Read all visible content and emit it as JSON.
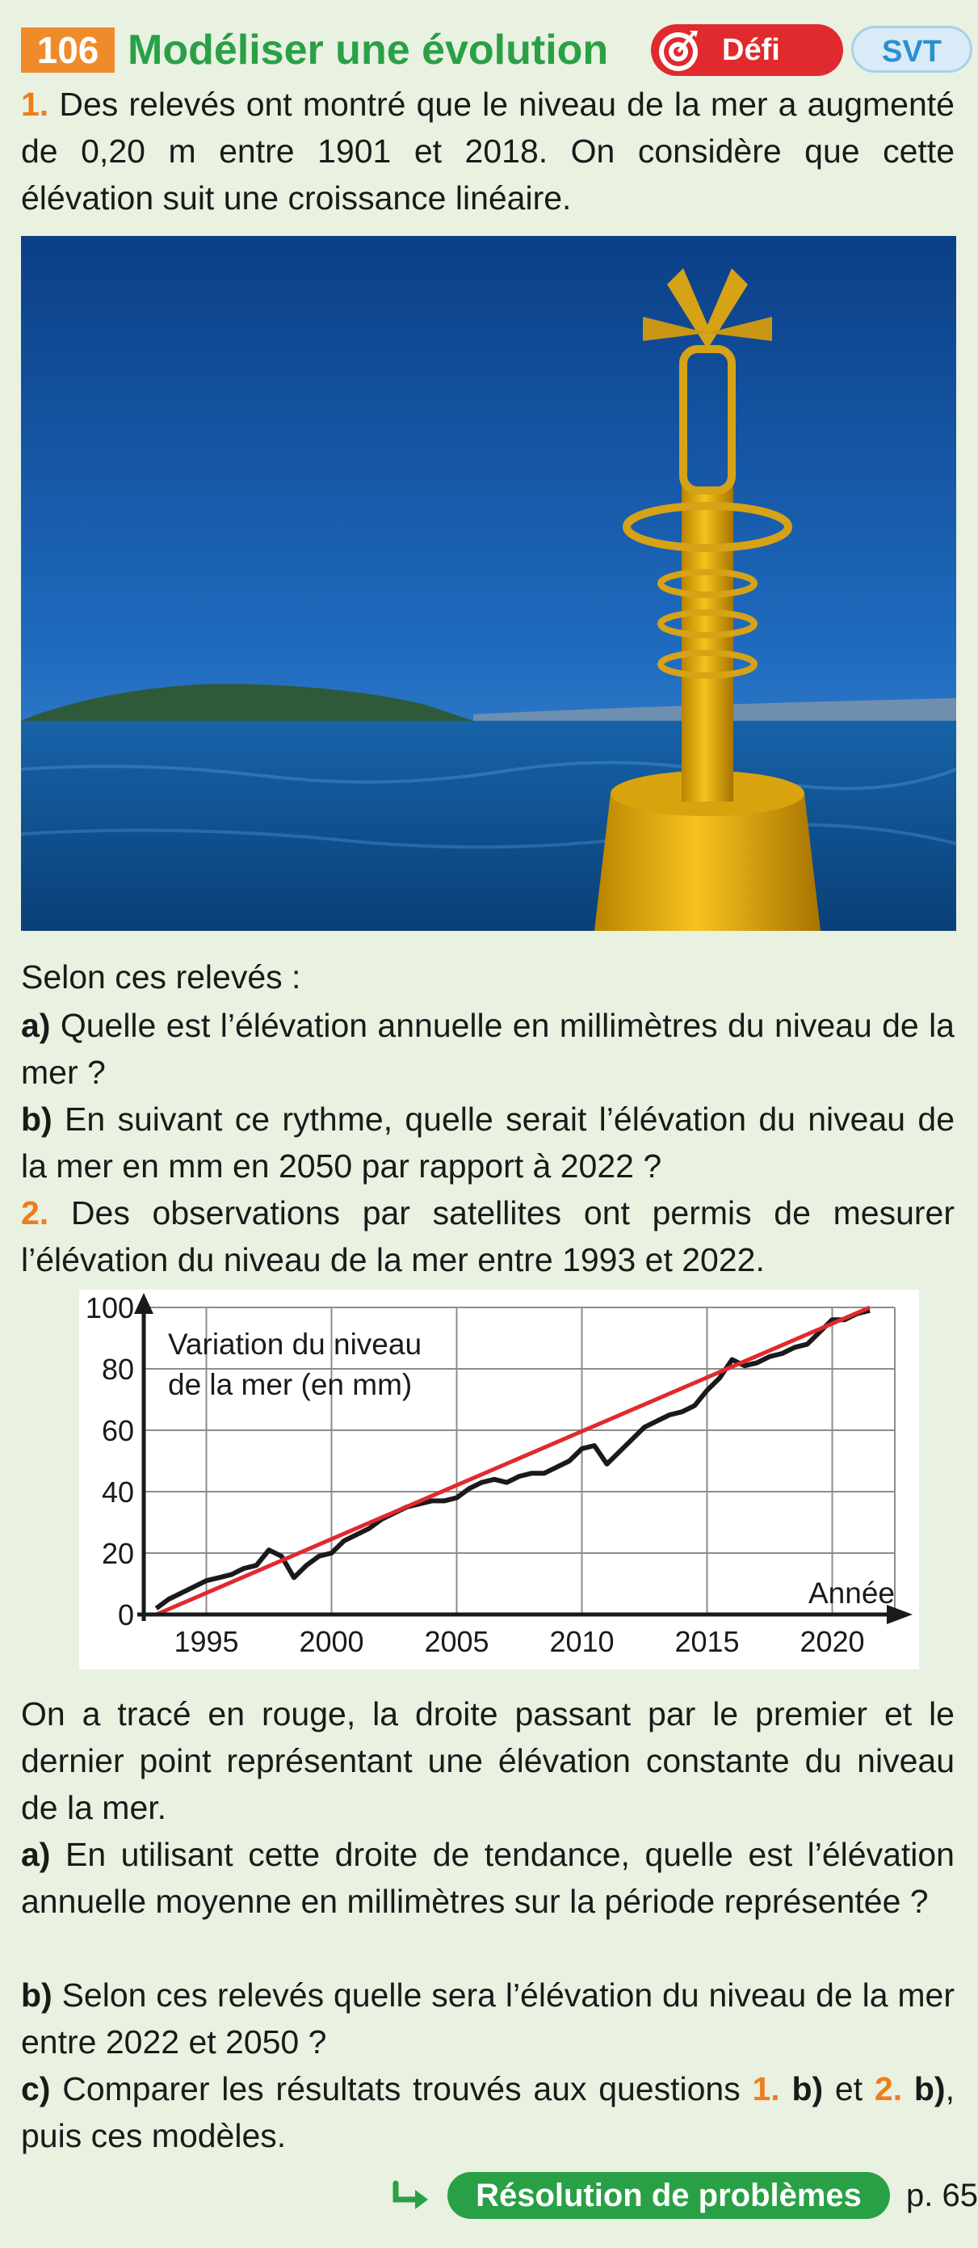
{
  "header": {
    "number": "106",
    "title": "Modéliser une évolution",
    "badge_defi": "Défi",
    "badge_subject": "SVT",
    "defi_icon": "target-icon"
  },
  "part1": {
    "num": "1.",
    "intro": "Des relevés ont montré que le niveau de la mer a augmenté de 0,20 m entre 1901 et 2018. On considère que cette élévation suit une croissance linéaire.",
    "lead": "Selon ces relevés :",
    "a_label": "a)",
    "a_text": "Quelle est l’élévation annuelle en millimètres du niveau de la mer ?",
    "b_label": "b)",
    "b_text": "En suivant ce rythme, quelle serait l’élévation du niveau de la mer en mm en 2050 par rapport à 2022 ?"
  },
  "part2": {
    "num": "2.",
    "intro": "Des observations par satellites ont permis de mesurer l’élévation du niveau de la mer entre 1993 et 2022.",
    "after_chart": "On a tracé en rouge, la droite passant par le premier et le dernier point représentant une élévation constante du niveau de la mer.",
    "a_label": "a)",
    "a_text": "En utilisant cette droite de tendance, quelle est l’élévation annuelle moyenne en millimètres sur la période représentée ?",
    "b_label": "b)",
    "b_text": "Selon ces relevés quelle sera l’élévation du niveau de la mer entre 2022 et 2050 ?",
    "c_label": "c)",
    "c_text_1": "Comparer les résultats trouvés aux questions",
    "c_ref1_num": "1.",
    "c_ref1_letter": "b)",
    "c_and": "et",
    "c_ref2_num": "2.",
    "c_ref2_letter": "b)",
    "c_text_2": ", puis ces modèles."
  },
  "chart_data": {
    "type": "line",
    "ylabel_line1": "Variation du niveau",
    "ylabel_line2": "de la mer (en mm)",
    "xlabel": "Année",
    "xlim": [
      1992.5,
      2022.5
    ],
    "ylim": [
      0,
      100
    ],
    "x_ticks": [
      1995,
      2000,
      2005,
      2010,
      2015,
      2020
    ],
    "y_ticks": [
      0,
      20,
      40,
      60,
      80,
      100
    ],
    "grid": true,
    "series": [
      {
        "color": "#1a1a1a",
        "x": [
          1993.0,
          1993.5,
          1994.0,
          1994.5,
          1995.0,
          1995.5,
          1996.0,
          1996.5,
          1997.0,
          1997.5,
          1998.0,
          1998.5,
          1999.0,
          1999.5,
          2000.0,
          2000.5,
          2001.0,
          2001.5,
          2002.0,
          2002.5,
          2003.0,
          2003.5,
          2004.0,
          2004.5,
          2005.0,
          2005.5,
          2006.0,
          2006.5,
          2007.0,
          2007.5,
          2008.0,
          2008.5,
          2009.0,
          2009.5,
          2010.0,
          2010.5,
          2011.0,
          2011.5,
          2012.0,
          2012.5,
          2013.0,
          2013.5,
          2014.0,
          2014.5,
          2015.0,
          2015.5,
          2016.0,
          2016.5,
          2017.0,
          2017.5,
          2018.0,
          2018.5,
          2019.0,
          2019.5,
          2020.0,
          2020.5,
          2021.0,
          2021.5
        ],
        "y": [
          2,
          5,
          7,
          9,
          11,
          12,
          13,
          15,
          16,
          21,
          19,
          12,
          16,
          19,
          20,
          24,
          26,
          28,
          31,
          33,
          35,
          36,
          37,
          37,
          38,
          41,
          43,
          44,
          43,
          45,
          46,
          46,
          48,
          50,
          54,
          55,
          49,
          53,
          57,
          61,
          63,
          65,
          66,
          68,
          73,
          77,
          83,
          81,
          82,
          84,
          85,
          87,
          88,
          92,
          96,
          96,
          98,
          99
        ]
      },
      {
        "color": "#e02a2d",
        "x": [
          1993.0,
          2021.5
        ],
        "y": [
          0,
          100
        ]
      }
    ]
  },
  "footer": {
    "arrow_icon": "arrow-right-icon",
    "pill": "Résolution de problèmes",
    "page": "p. 65"
  },
  "photo": {
    "icon": "buoy-photo"
  }
}
